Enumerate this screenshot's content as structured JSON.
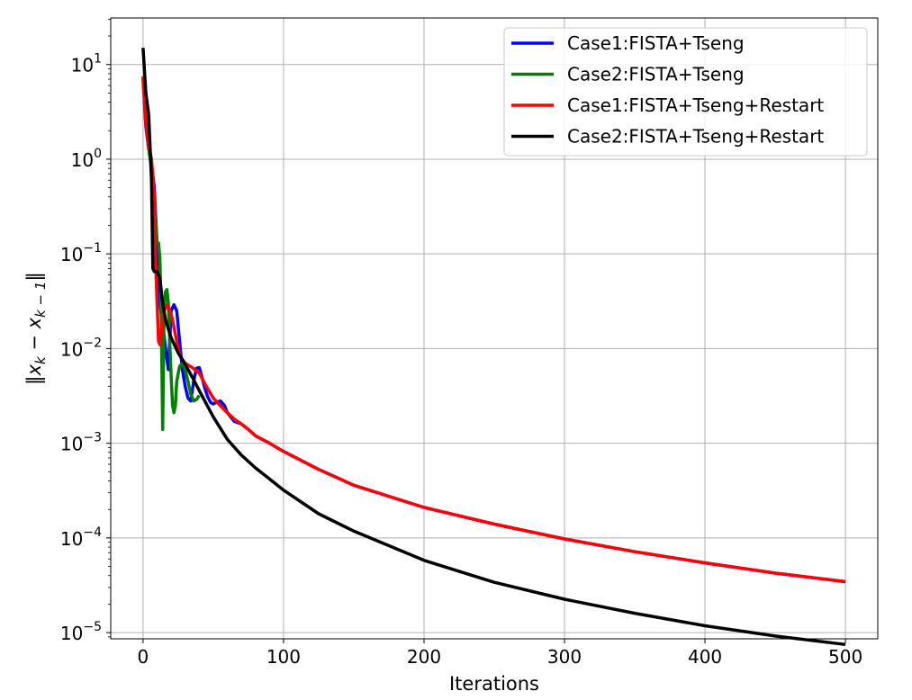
{
  "chart_data": {
    "type": "line",
    "title": "",
    "xlabel": "Iterations",
    "ylabel": "‖x_k − x_(k−1)‖",
    "ylabel_parts": {
      "open": "‖x",
      "sub1": "k",
      "mid": " − x",
      "sub2": "k − 1",
      "close": "‖"
    },
    "y_scale": "log",
    "xlim": [
      -23,
      523
    ],
    "ylim": [
      8.6e-06,
      31
    ],
    "grid": true,
    "legend_position": "top-right",
    "x_ticks": [
      0,
      100,
      200,
      300,
      400,
      500
    ],
    "y_ticks": [
      {
        "value": 10,
        "base": "10",
        "exp": "1"
      },
      {
        "value": 1,
        "base": "10",
        "exp": "0"
      },
      {
        "value": 0.1,
        "base": "10",
        "exp": "−1"
      },
      {
        "value": 0.01,
        "base": "10",
        "exp": "−2"
      },
      {
        "value": 0.001,
        "base": "10",
        "exp": "−3"
      },
      {
        "value": 0.0001,
        "base": "10",
        "exp": "−4"
      },
      {
        "value": 1e-05,
        "base": "10",
        "exp": "−5"
      }
    ],
    "series": [
      {
        "name": "Case1:FISTA+Tseng",
        "color": "#0000ff",
        "x": [
          0,
          2,
          4,
          6,
          8,
          10,
          12,
          14,
          16,
          18,
          20,
          22,
          24,
          26,
          28,
          30,
          32,
          34,
          36,
          38,
          40,
          42,
          44,
          46,
          48,
          50,
          52,
          55,
          58,
          60,
          65,
          70,
          75,
          80,
          90,
          100,
          125,
          150,
          200,
          250,
          300,
          350,
          400,
          450,
          500
        ],
        "y": [
          7,
          2.2,
          1.3,
          0.9,
          0.5,
          0.12,
          0.03,
          0.018,
          0.01,
          0.006,
          0.025,
          0.029,
          0.025,
          0.012,
          0.006,
          0.004,
          0.003,
          0.0028,
          0.0045,
          0.0062,
          0.0063,
          0.005,
          0.0038,
          0.0031,
          0.0027,
          0.0026,
          0.0027,
          0.0028,
          0.0025,
          0.0021,
          0.0017,
          0.0016,
          0.0014,
          0.0012,
          0.001,
          0.00082,
          0.00053,
          0.00036,
          0.00021,
          0.00014,
          9.75e-05,
          7.15e-05,
          5.45e-05,
          4.25e-05,
          3.45e-05
        ]
      },
      {
        "name": "Case2:FISTA+Tseng",
        "color": "#008000",
        "x": [
          0,
          2,
          4,
          6,
          8,
          10,
          11,
          12,
          13,
          14,
          15,
          16,
          17,
          18,
          19,
          20,
          21,
          22,
          23,
          24,
          26,
          28,
          30,
          32,
          34,
          36,
          38,
          40
        ],
        "y": [
          7.5,
          2.5,
          1.3,
          0.8,
          0.4,
          0.13,
          0.13,
          0.09,
          0.02,
          0.0014,
          0.025,
          0.04,
          0.042,
          0.03,
          0.012,
          0.005,
          0.0025,
          0.0021,
          0.0025,
          0.0045,
          0.0065,
          0.007,
          0.006,
          0.0045,
          0.0033,
          0.0028,
          0.0029,
          0.0032
        ]
      },
      {
        "name": "Case1:FISTA+Tseng+Restart",
        "color": "#ff0000",
        "x": [
          0,
          2,
          4,
          6,
          8,
          9,
          10,
          11,
          12,
          13,
          14,
          15,
          17,
          19,
          21,
          23,
          25,
          27,
          30,
          35,
          40,
          45,
          50,
          55,
          60,
          65,
          70,
          75,
          80,
          90,
          100,
          125,
          150,
          200,
          250,
          300,
          350,
          400,
          450,
          500
        ],
        "y": [
          7.5,
          2.3,
          1.4,
          1,
          0.4,
          0.08,
          0.03,
          0.012,
          0.011,
          0.015,
          0.02,
          0.025,
          0.029,
          0.026,
          0.02,
          0.014,
          0.01,
          0.008,
          0.007,
          0.0063,
          0.0055,
          0.004,
          0.003,
          0.0025,
          0.0021,
          0.0018,
          0.0016,
          0.0014,
          0.0012,
          0.001,
          0.00082,
          0.00053,
          0.00036,
          0.00021,
          0.00014,
          9.75e-05,
          7.15e-05,
          5.45e-05,
          4.25e-05,
          3.45e-05
        ]
      },
      {
        "name": "Case2:FISTA+Tseng+Restart",
        "color": "#000000",
        "x": [
          0,
          2,
          4,
          6,
          7,
          8,
          10,
          12,
          14,
          16,
          20,
          25,
          30,
          35,
          40,
          50,
          60,
          70,
          80,
          90,
          100,
          125,
          150,
          200,
          250,
          300,
          350,
          400,
          450,
          500
        ],
        "y": [
          15,
          5,
          3,
          0.6,
          0.07,
          0.065,
          0.065,
          0.055,
          0.03,
          0.02,
          0.013,
          0.009,
          0.0068,
          0.005,
          0.0036,
          0.0019,
          0.0011,
          0.00075,
          0.00055,
          0.00042,
          0.00032,
          0.00018,
          0.000118,
          5.8e-05,
          3.4e-05,
          2.25e-05,
          1.6e-05,
          1.18e-05,
          9.2e-06,
          7.5e-06
        ]
      }
    ]
  }
}
